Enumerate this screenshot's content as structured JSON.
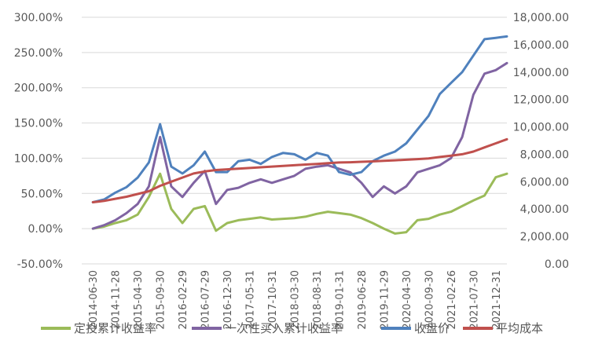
{
  "chart_data": {
    "type": "line",
    "title": "",
    "xlabel": "",
    "ylabel_left": "",
    "ylabel_right": "",
    "x_tick_labels": [
      "2014-06-30",
      "2014-11-28",
      "2015-04-30",
      "2015-09-30",
      "2016-02-29",
      "2016-07-29",
      "2016-12-30",
      "2017-05-31",
      "2017-10-31",
      "2018-03-30",
      "2018-08-31",
      "2019-01-31",
      "2019-06-28",
      "2019-11-29",
      "2020-04-30",
      "2020-09-30",
      "2021-02-26",
      "2021-07-30",
      "2021-12-31"
    ],
    "left_axis": {
      "ticks": [
        "-50.00%",
        "0.00%",
        "50.00%",
        "100.00%",
        "150.00%",
        "200.00%",
        "250.00%",
        "300.00%"
      ],
      "ylim": [
        -50,
        300
      ]
    },
    "right_axis": {
      "ticks": [
        "0.00",
        "2,000.00",
        "4,000.00",
        "6,000.00",
        "8,000.00",
        "10,000.00",
        "12,000.00",
        "14,000.00",
        "16,000.00",
        "18,000.00"
      ],
      "ylim": [
        0,
        18000
      ]
    },
    "legend_position": "bottom",
    "series": [
      {
        "name": "定投累计收益率",
        "axis": "left",
        "color": "#9BBB59",
        "x": [
          0,
          0.5,
          1,
          1.5,
          2,
          2.5,
          3,
          3.5,
          4,
          4.5,
          5,
          5.5,
          6,
          6.5,
          7,
          7.5,
          8,
          8.5,
          9,
          9.5,
          10,
          10.5,
          11,
          11.5,
          12,
          12.5,
          13,
          13.5,
          14,
          14.5,
          15,
          15.5,
          16,
          16.5,
          17,
          17.5,
          18,
          18.5
        ],
        "values": [
          0,
          3,
          8,
          12,
          20,
          45,
          78,
          28,
          8,
          28,
          32,
          -3,
          8,
          12,
          14,
          16,
          13,
          14,
          15,
          17,
          21,
          24,
          22,
          20,
          15,
          8,
          0,
          -7,
          -5,
          12,
          14,
          20,
          24,
          32,
          40,
          47,
          73,
          78
        ]
      },
      {
        "name": "一次性买入累计收益率",
        "axis": "left",
        "color": "#8064A2",
        "x": [
          0,
          0.5,
          1,
          1.5,
          2,
          2.5,
          3,
          3.5,
          4,
          4.5,
          5,
          5.5,
          6,
          6.5,
          7,
          7.5,
          8,
          8.5,
          9,
          9.5,
          10,
          10.5,
          11,
          11.5,
          12,
          12.5,
          13,
          13.5,
          14,
          14.5,
          15,
          15.5,
          16,
          16.5,
          17,
          17.5,
          18,
          18.5
        ],
        "values": [
          0,
          5,
          12,
          22,
          35,
          60,
          130,
          60,
          45,
          65,
          82,
          35,
          55,
          58,
          65,
          70,
          65,
          70,
          75,
          85,
          88,
          90,
          85,
          80,
          65,
          45,
          60,
          50,
          60,
          80,
          85,
          90,
          100,
          130,
          190,
          220,
          225,
          235
        ]
      },
      {
        "name": "收盘价",
        "axis": "right",
        "color": "#4F81BD",
        "x": [
          0,
          0.5,
          1,
          1.5,
          2,
          2.5,
          3,
          3.5,
          4,
          4.5,
          5,
          5.5,
          6,
          6.5,
          7,
          7.5,
          8,
          8.5,
          9,
          9.5,
          10,
          10.5,
          11,
          11.5,
          12,
          12.5,
          13,
          13.5,
          14,
          14.5,
          15,
          15.5,
          16,
          16.5,
          17,
          17.5,
          18,
          18.5
        ],
        "values": [
          4500,
          4700,
          5200,
          5600,
          6300,
          7400,
          10200,
          7100,
          6600,
          7200,
          8200,
          6700,
          6700,
          7500,
          7600,
          7300,
          7800,
          8100,
          8000,
          7600,
          8100,
          7900,
          6700,
          6500,
          6700,
          7500,
          7900,
          8200,
          8800,
          9800,
          10800,
          12400,
          13200,
          14000,
          15200,
          16400,
          16500,
          16600
        ]
      },
      {
        "name": "平均成本",
        "axis": "right",
        "color": "#C0504D",
        "x": [
          0,
          0.5,
          1,
          1.5,
          2,
          2.5,
          3,
          3.5,
          4,
          4.5,
          5,
          5.5,
          6,
          6.5,
          7,
          7.5,
          8,
          8.5,
          9,
          9.5,
          10,
          10.5,
          11,
          11.5,
          12,
          12.5,
          13,
          13.5,
          14,
          14.5,
          15,
          15.5,
          16,
          16.5,
          17,
          17.5,
          18,
          18.5
        ],
        "values": [
          4500,
          4600,
          4750,
          4900,
          5100,
          5300,
          5700,
          6000,
          6300,
          6600,
          6750,
          6850,
          6900,
          6950,
          7000,
          7050,
          7100,
          7150,
          7200,
          7250,
          7300,
          7350,
          7400,
          7420,
          7450,
          7480,
          7520,
          7560,
          7600,
          7650,
          7700,
          7800,
          7900,
          8000,
          8200,
          8500,
          8800,
          9100
        ]
      }
    ]
  }
}
